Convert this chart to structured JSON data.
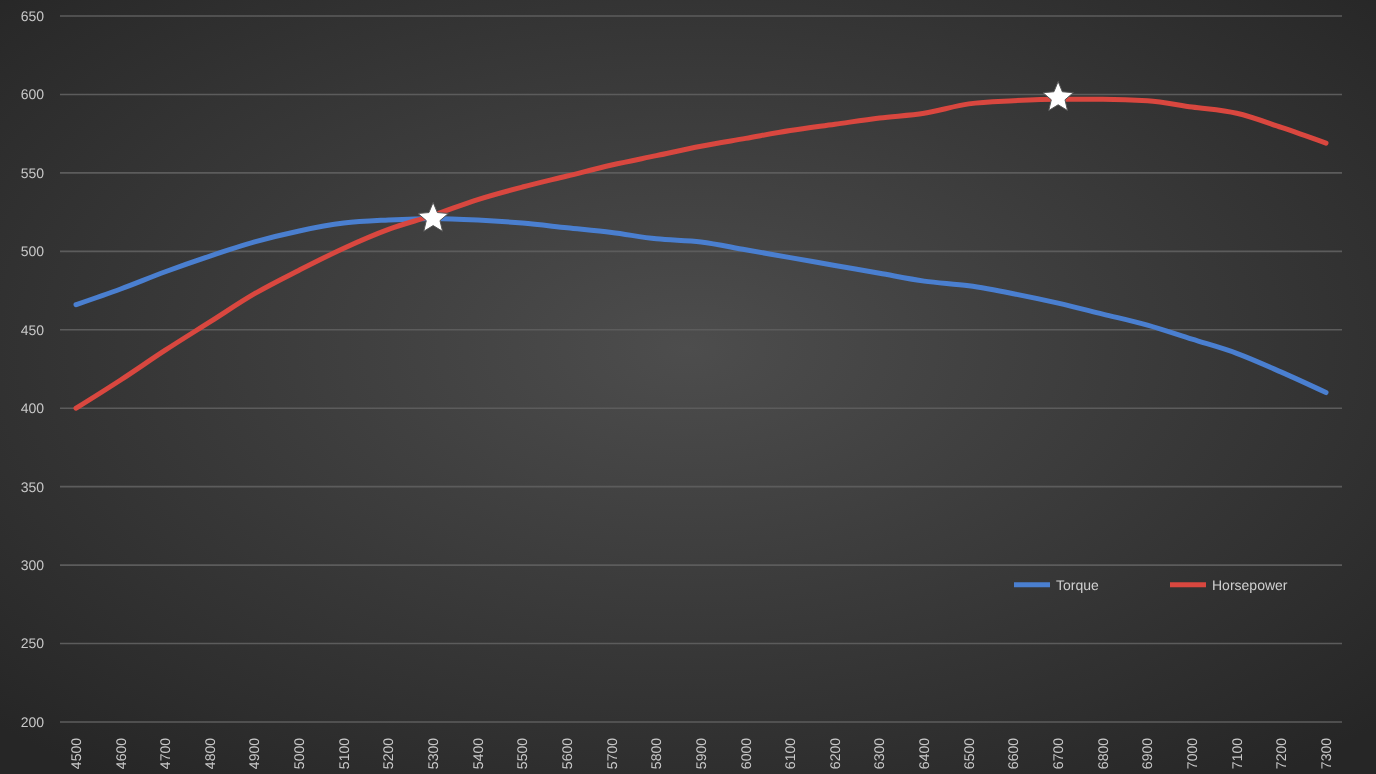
{
  "chart_data": {
    "type": "line",
    "categories": [
      "4500",
      "4600",
      "4700",
      "4800",
      "4900",
      "5000",
      "5100",
      "5200",
      "5300",
      "5400",
      "5500",
      "5600",
      "5700",
      "5800",
      "5900",
      "6000",
      "6100",
      "6200",
      "6300",
      "6400",
      "6500",
      "6600",
      "6700",
      "6800",
      "6900",
      "7000",
      "7100",
      "7200",
      "7300"
    ],
    "series": [
      {
        "name": "Torque",
        "color": "#4a7fd0",
        "values": [
          466,
          476,
          487,
          497,
          506,
          513,
          518,
          520,
          521,
          520,
          518,
          515,
          512,
          508,
          506,
          501,
          496,
          491,
          486,
          481,
          478,
          473,
          467,
          460,
          453,
          444,
          435,
          423,
          410
        ]
      },
      {
        "name": "Horsepower",
        "color": "#d9473f",
        "values": [
          400,
          418,
          437,
          455,
          473,
          488,
          502,
          514,
          523,
          533,
          541,
          548,
          555,
          561,
          567,
          572,
          577,
          581,
          585,
          588,
          594,
          596,
          597,
          597,
          596,
          592,
          588,
          579,
          569
        ]
      },
      {
        "type": "scatter",
        "marker": "star",
        "color": "#ffffff",
        "values": [
          null,
          null,
          null,
          null,
          null,
          null,
          null,
          null,
          521,
          null,
          null,
          null,
          null,
          null,
          null,
          null,
          null,
          null,
          null,
          null,
          null,
          null,
          598,
          null,
          null,
          null,
          null,
          null,
          null
        ]
      }
    ],
    "ylim": [
      200,
      650
    ],
    "yticks": [
      200,
      250,
      300,
      350,
      400,
      450,
      500,
      550,
      600,
      650
    ],
    "grid": "y",
    "legend": "bottom right",
    "line_style": "solid"
  }
}
